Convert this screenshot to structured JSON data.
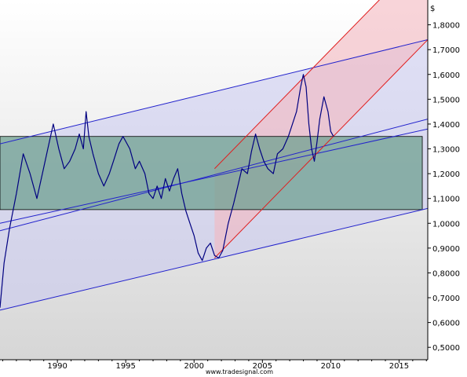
{
  "chart_data": {
    "type": "line",
    "currency_label": "$",
    "footer": "www.tradesignal.com",
    "y_axis": {
      "position": "right",
      "ylim": [
        0.45,
        1.9
      ],
      "ticks": [
        0.5,
        0.6,
        0.7,
        0.8,
        0.9,
        1.0,
        1.1,
        1.2,
        1.3,
        1.4,
        1.5,
        1.6,
        1.7,
        1.8
      ],
      "tick_labels": [
        "0,5000",
        "0,6000",
        "0,7000",
        "0,8000",
        "0,9000",
        "1,0000",
        "1,1000",
        "1,2000",
        "1,3000",
        "1,4000",
        "1,5000",
        "1,6000",
        "1,7000",
        "1,8000"
      ]
    },
    "x_axis": {
      "xlim": [
        1985.8,
        2017.1
      ],
      "ticks": [
        1990,
        1995,
        2000,
        2005,
        2010,
        2015
      ],
      "tick_labels": [
        "1990",
        "1995",
        "2000",
        "2005",
        "2010",
        "2015"
      ]
    },
    "grid": false,
    "colors": {
      "price_line": "#000080",
      "blue_channel_fill": "#c8c8f0",
      "blue_channel_line": "#2222cc",
      "red_channel_fill": "#f4b8c0",
      "red_channel_line": "#e02020",
      "range_box_fill": "#6fa090",
      "range_box_border": "#000000"
    },
    "series": [
      {
        "x": [
          1985.8,
          1986.1,
          1986.5,
          1987.0,
          1987.5,
          1988.0,
          1988.5,
          1988.9,
          1989.3,
          1989.7,
          1989.9,
          1990.1,
          1990.5,
          1990.9,
          1991.3,
          1991.6,
          1991.9,
          1992.1,
          1992.3,
          1992.6,
          1993.0,
          1993.4,
          1993.8,
          1994.1,
          1994.5,
          1994.8,
          1995.0,
          1995.3,
          1995.7,
          1996.0,
          1996.4,
          1996.7,
          1997.0,
          1997.3,
          1997.6,
          1997.9,
          1998.2,
          1998.5,
          1998.8,
          1999.1,
          1999.4,
          1999.7,
          2000.0,
          2000.3,
          2000.6,
          2000.9,
          2001.2,
          2001.5,
          2001.8,
          2002.1,
          2002.5,
          2002.9,
          2003.2,
          2003.5,
          2003.9,
          2004.2,
          2004.5,
          2004.8,
          2005.1,
          2005.4,
          2005.8,
          2006.1,
          2006.5,
          2006.9,
          2007.2,
          2007.5,
          2007.8,
          2008.0,
          2008.2,
          2008.4,
          2008.6,
          2008.8,
          2009.0,
          2009.2,
          2009.5,
          2009.8,
          2010.0,
          2010.2
        ],
        "values": [
          0.66,
          0.84,
          0.98,
          1.12,
          1.28,
          1.2,
          1.1,
          1.2,
          1.3,
          1.4,
          1.35,
          1.3,
          1.22,
          1.25,
          1.3,
          1.36,
          1.3,
          1.45,
          1.35,
          1.28,
          1.2,
          1.15,
          1.2,
          1.25,
          1.32,
          1.35,
          1.33,
          1.3,
          1.22,
          1.25,
          1.2,
          1.12,
          1.1,
          1.15,
          1.1,
          1.18,
          1.13,
          1.18,
          1.22,
          1.12,
          1.05,
          1.0,
          0.95,
          0.88,
          0.85,
          0.9,
          0.92,
          0.87,
          0.86,
          0.89,
          1.0,
          1.08,
          1.15,
          1.22,
          1.2,
          1.29,
          1.36,
          1.3,
          1.25,
          1.22,
          1.2,
          1.28,
          1.3,
          1.35,
          1.4,
          1.45,
          1.55,
          1.6,
          1.55,
          1.4,
          1.3,
          1.25,
          1.33,
          1.42,
          1.51,
          1.45,
          1.37,
          1.35
        ]
      }
    ],
    "overlays": {
      "blue_channel": {
        "upper": {
          "x": [
            1985.8,
            2017.1
          ],
          "y": [
            1.32,
            1.74
          ]
        },
        "lower": {
          "x": [
            1985.8,
            2017.1
          ],
          "y": [
            0.65,
            1.06
          ]
        },
        "middle_lines": [
          {
            "x": [
              1985.8,
              2017.1
            ],
            "y": [
              1.0,
              1.38
            ]
          },
          {
            "x": [
              1985.8,
              2017.1
            ],
            "y": [
              0.97,
              1.42
            ]
          }
        ]
      },
      "red_channel": {
        "lower": {
          "x": [
            2001.5,
            2017.1
          ],
          "y": [
            0.86,
            1.74
          ]
        },
        "upper": {
          "x": [
            2001.5,
            2017.1
          ],
          "y": [
            1.22,
            2.1
          ]
        }
      },
      "range_box": {
        "x": [
          1985.8,
          2016.7
        ],
        "y": [
          1.055,
          1.35
        ]
      }
    }
  }
}
